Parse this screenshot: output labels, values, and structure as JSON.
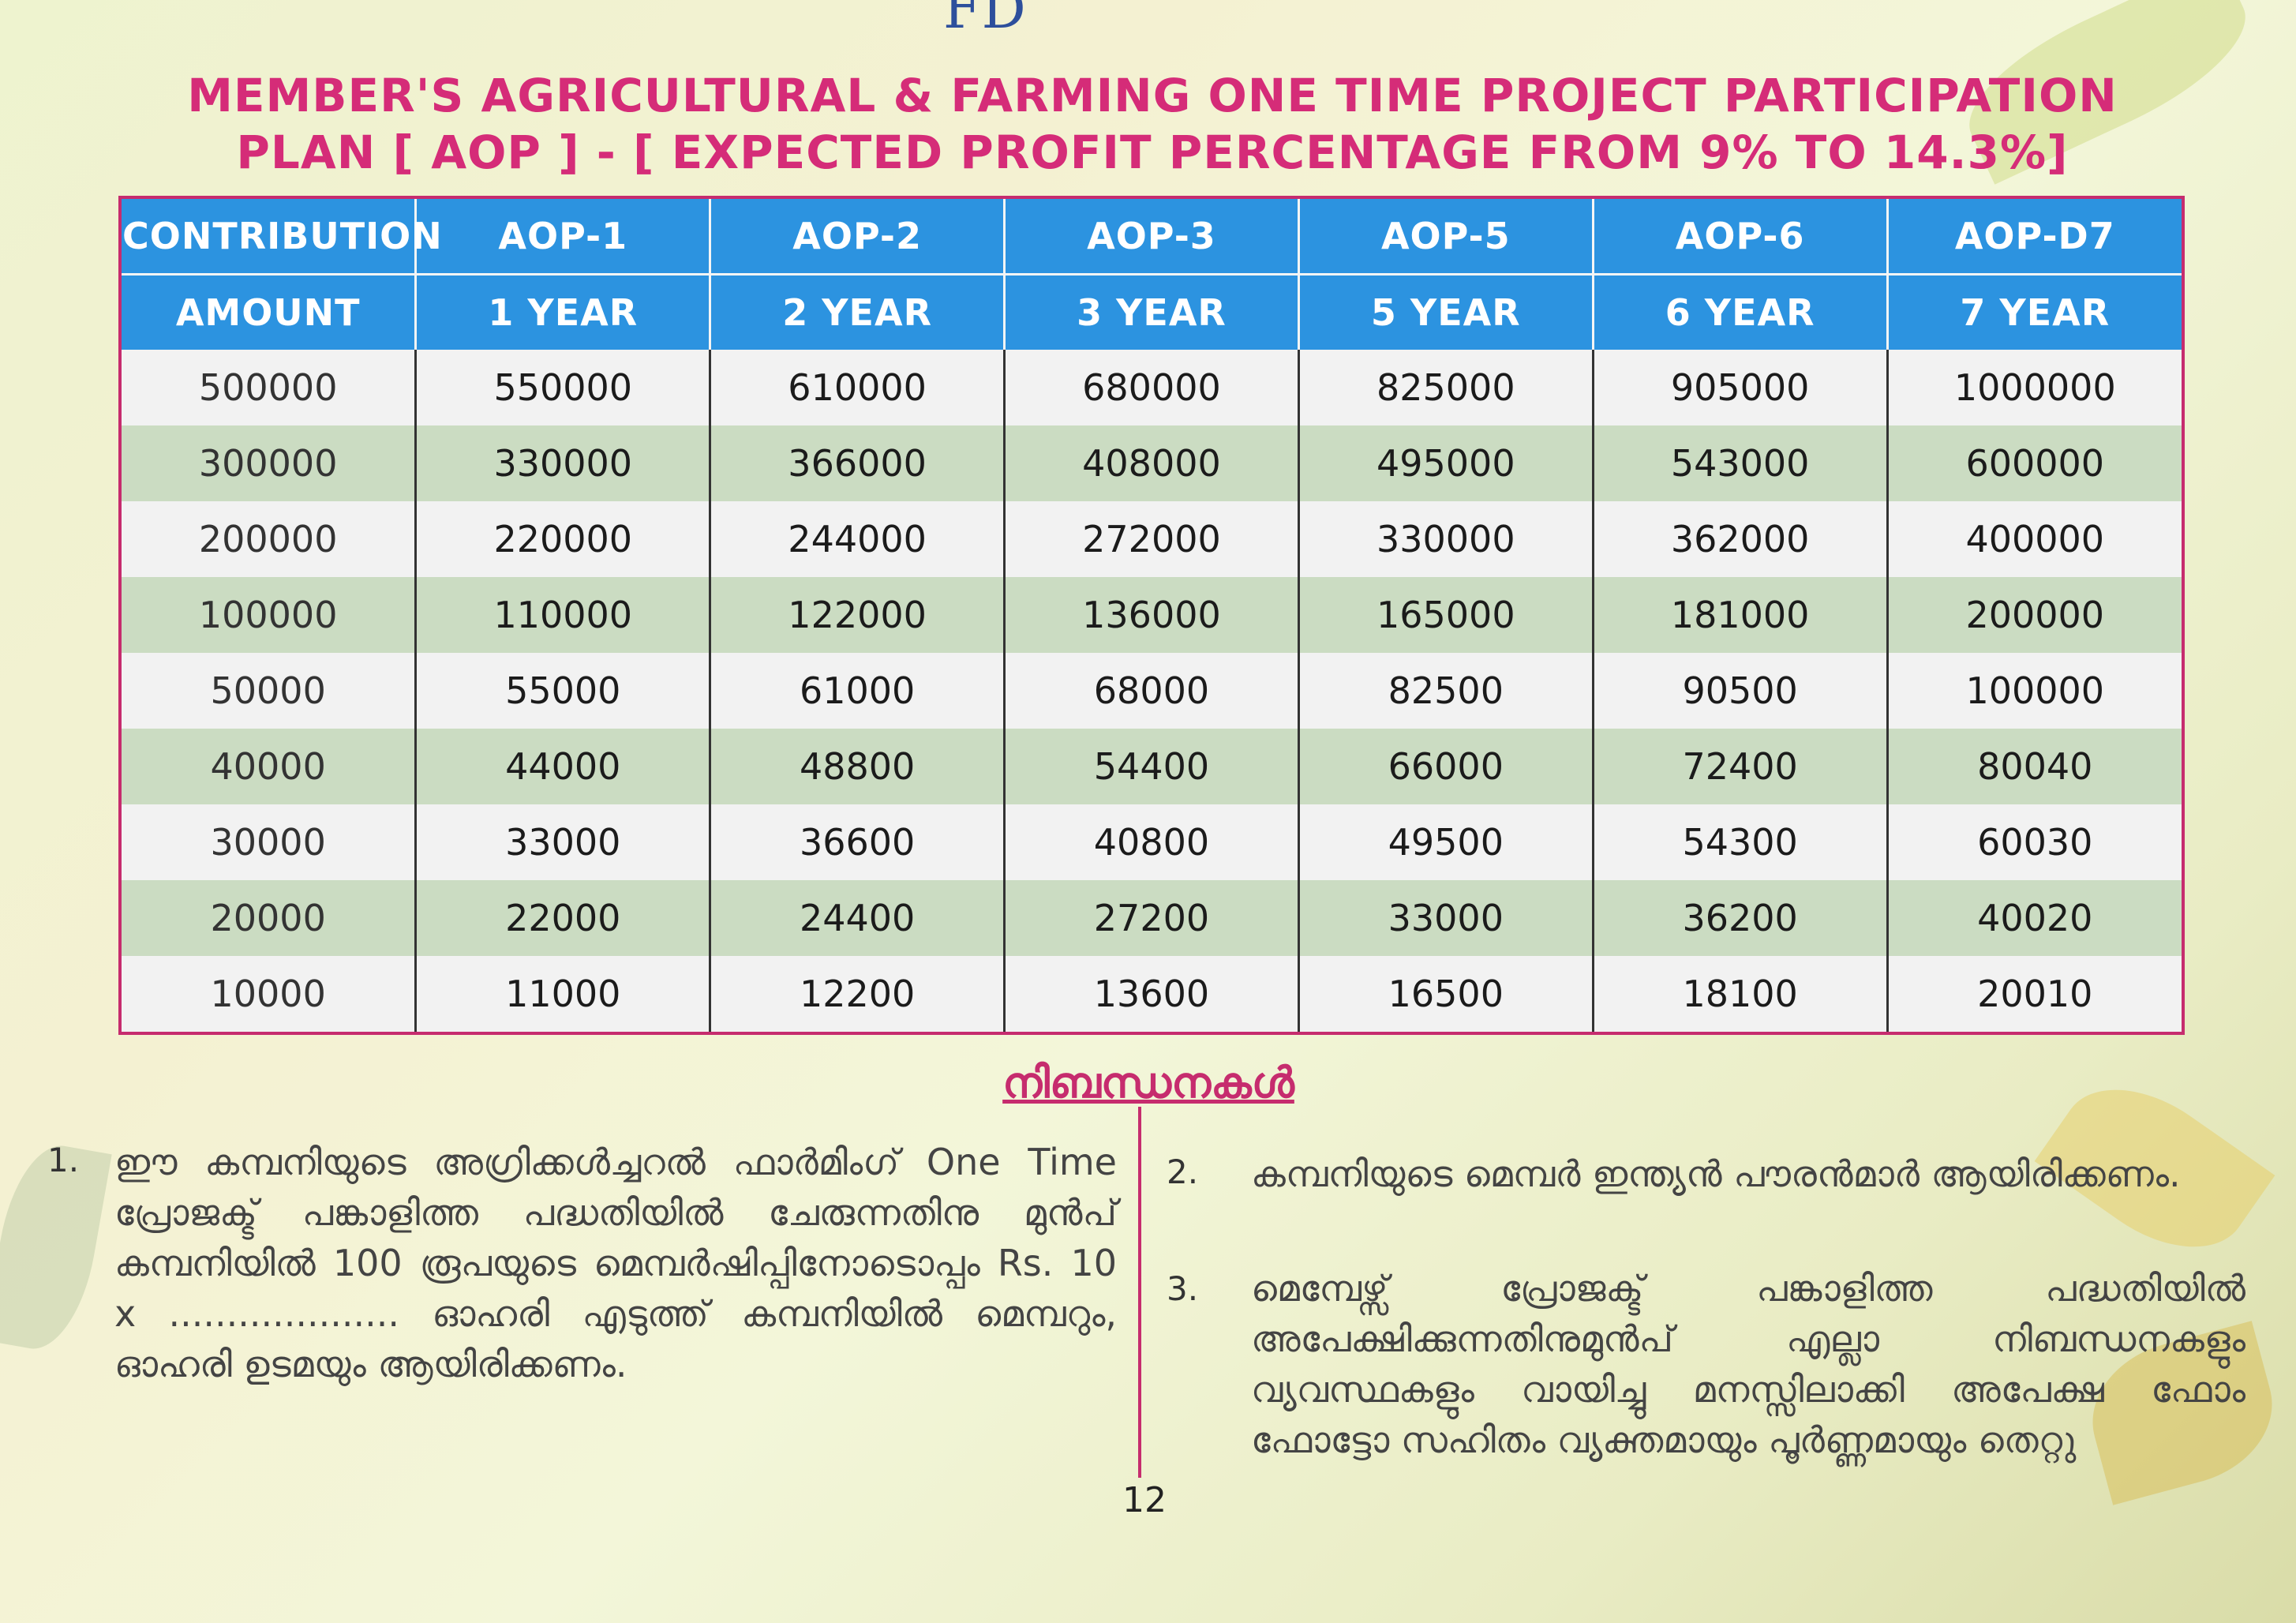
{
  "handwritten_mark": "FD",
  "title": {
    "line1": "MEMBER'S AGRICULTURAL & FARMING ONE TIME PROJECT PARTICIPATION",
    "line2": "PLAN [ AOP ] - [ EXPECTED PROFIT PERCENTAGE FROM 9% TO 14.3%]"
  },
  "table": {
    "header_top": [
      "CONTRIBUTION",
      "AOP-1",
      "AOP-2",
      "AOP-3",
      "AOP-5",
      "AOP-6",
      "AOP-D7"
    ],
    "header_sub": [
      "AMOUNT",
      "1 YEAR",
      "2 YEAR",
      "3 YEAR",
      "5 YEAR",
      "6 YEAR",
      "7 YEAR"
    ],
    "rows": [
      [
        "500000",
        "550000",
        "610000",
        "680000",
        "825000",
        "905000",
        "1000000"
      ],
      [
        "300000",
        "330000",
        "366000",
        "408000",
        "495000",
        "543000",
        "600000"
      ],
      [
        "200000",
        "220000",
        "244000",
        "272000",
        "330000",
        "362000",
        "400000"
      ],
      [
        "100000",
        "110000",
        "122000",
        "136000",
        "165000",
        "181000",
        "200000"
      ],
      [
        "50000",
        "55000",
        "61000",
        "68000",
        "82500",
        "90500",
        "100000"
      ],
      [
        "40000",
        "44000",
        "48800",
        "54400",
        "66000",
        "72400",
        "80040"
      ],
      [
        "30000",
        "33000",
        "36600",
        "40800",
        "49500",
        "54300",
        "60030"
      ],
      [
        "20000",
        "22000",
        "24400",
        "27200",
        "33000",
        "36200",
        "40020"
      ],
      [
        "10000",
        "11000",
        "12200",
        "13600",
        "16500",
        "18100",
        "20010"
      ]
    ]
  },
  "terms": {
    "heading": "നിബന്ധനകൾ",
    "items": [
      {
        "num": "1.",
        "text": "ഈ കമ്പനിയുടെ അഗ്രിക്കൾച്ചറൽ ഫാർമിംഗ് One Time പ്രോജക്ട് പങ്കാളിത്ത പദ്ധതിയിൽ ചേരുന്നതിനു മുൻപ് കമ്പനിയിൽ 100 രൂപയുടെ മെമ്പർഷിപ്പിനോടൊപ്പം Rs. 10 x .................... ഓഹരി എടുത്ത് കമ്പനിയിൽ മെമ്പറും, ഓഹരി ഉടമയും ആയിരിക്കണം."
      },
      {
        "num": "2.",
        "text": "കമ്പനിയുടെ മെമ്പർ ഇന്ത്യൻ പൗരൻമാർ ആയിരിക്കണം."
      },
      {
        "num": "3.",
        "text": "മെമ്പേഴ്സ് പ്രോജക്ട് പങ്കാളിത്ത പദ്ധതിയിൽ അപേക്ഷിക്കുന്നതിനുമുൻപ് എല്ലാ നിബന്ധനകളും വ്യവസ്ഥകളും വായിച്ചു മനസ്സിലാക്കി അപേക്ഷ ഫോം ഫോട്ടോ സഹിതം വ്യക്തമായും പൂർണ്ണമായും തെറ്റു"
      }
    ]
  },
  "page_number": "12",
  "colors": {
    "title": "#d52c78",
    "header_blue": "#2c93e0",
    "row_green": "#cbdcc2",
    "row_grey": "#f2f2f2",
    "frame_pink": "#c62c6e"
  }
}
